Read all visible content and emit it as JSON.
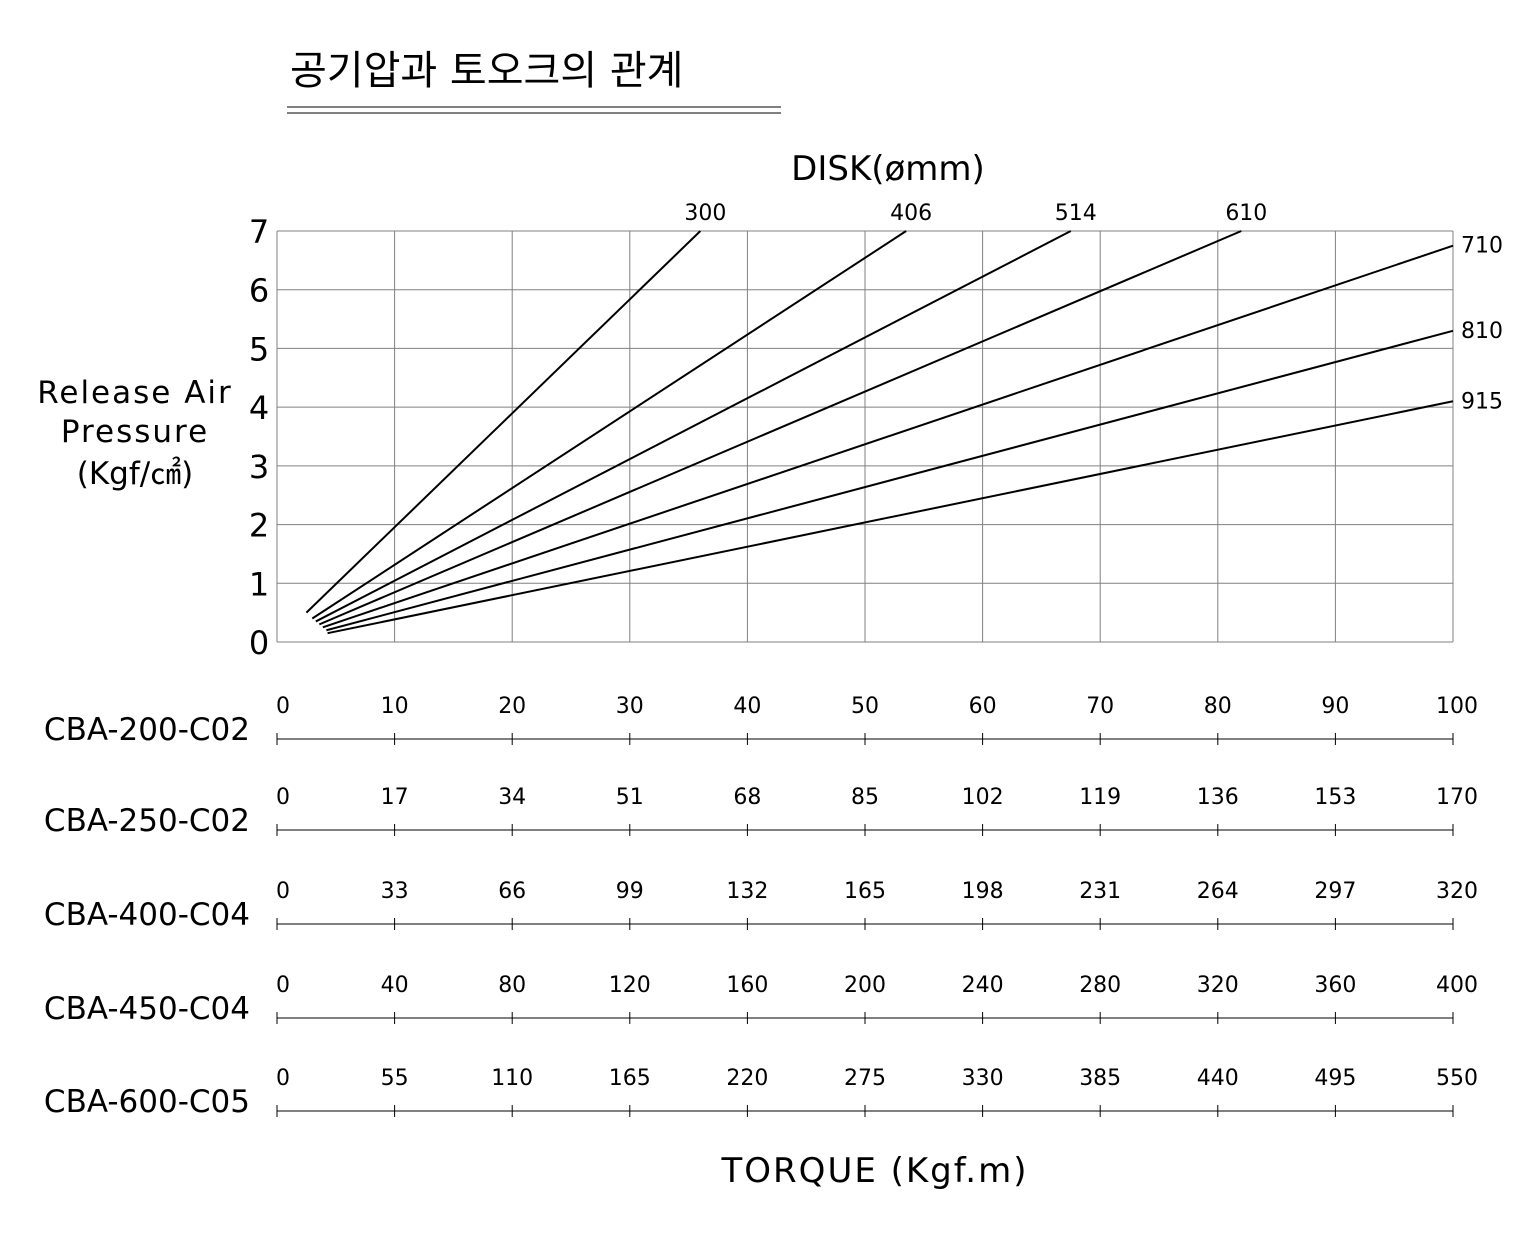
{
  "chart_data": {
    "type": "line",
    "title": "공기압과 토오크의 관계",
    "series_group_label": "DISK(ømm)",
    "ylabel_lines": [
      "Release Air",
      "Pressure",
      "(Kgf/㎠)"
    ],
    "xlabel": "TORQUE (Kgf.m)",
    "ylim": [
      0,
      7
    ],
    "xlim": [
      0,
      100
    ],
    "y_ticks": [
      "0",
      "1",
      "2",
      "3",
      "4",
      "5",
      "6",
      "7"
    ],
    "grid": true,
    "series": [
      {
        "name": "300",
        "x": [
          2.5,
          36
        ],
        "y": [
          0.5,
          7
        ]
      },
      {
        "name": "406",
        "x": [
          3,
          53.5
        ],
        "y": [
          0.4,
          7
        ]
      },
      {
        "name": "514",
        "x": [
          3.3,
          67.5
        ],
        "y": [
          0.35,
          7
        ]
      },
      {
        "name": "610",
        "x": [
          3.6,
          82
        ],
        "y": [
          0.3,
          7
        ]
      },
      {
        "name": "710",
        "x": [
          3.9,
          100
        ],
        "y": [
          0.25,
          6.75
        ]
      },
      {
        "name": "810",
        "x": [
          4.2,
          100
        ],
        "y": [
          0.2,
          5.3
        ]
      },
      {
        "name": "915",
        "x": [
          4.3,
          100
        ],
        "y": [
          0.15,
          4.1
        ]
      }
    ],
    "torque_scales": [
      {
        "model": "CBA-200-C02",
        "ticks": [
          "0",
          "10",
          "20",
          "30",
          "40",
          "50",
          "60",
          "70",
          "80",
          "90",
          "100"
        ]
      },
      {
        "model": "CBA-250-C02",
        "ticks": [
          "0",
          "17",
          "34",
          "51",
          "68",
          "85",
          "102",
          "119",
          "136",
          "153",
          "170"
        ]
      },
      {
        "model": "CBA-400-C04",
        "ticks": [
          "0",
          "33",
          "66",
          "99",
          "132",
          "165",
          "198",
          "231",
          "264",
          "297",
          "320"
        ]
      },
      {
        "model": "CBA-450-C04",
        "ticks": [
          "0",
          "40",
          "80",
          "120",
          "160",
          "200",
          "240",
          "280",
          "320",
          "360",
          "400"
        ]
      },
      {
        "model": "CBA-600-C05",
        "ticks": [
          "0",
          "55",
          "110",
          "165",
          "220",
          "275",
          "330",
          "385",
          "440",
          "495",
          "550"
        ]
      }
    ]
  }
}
